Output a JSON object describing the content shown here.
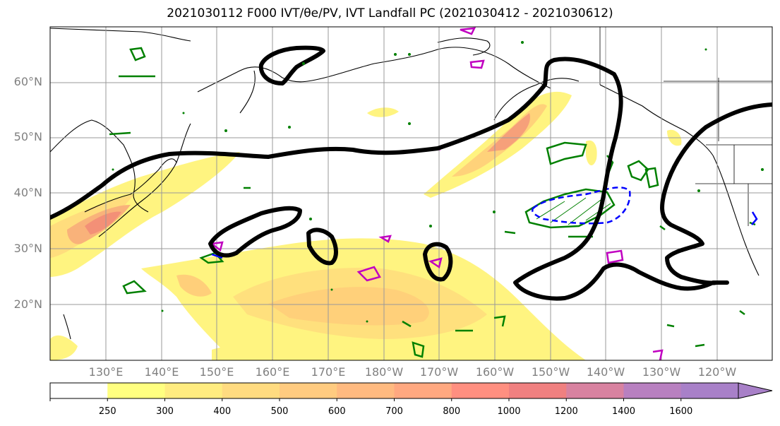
{
  "title": "2021030112 F000 IVT/θe/PV, IVT Landfall PC (2021030412 - 2021030612)",
  "lat_labels": [
    "60°N",
    "50°N",
    "40°N",
    "30°N",
    "20°N"
  ],
  "lon_labels": [
    "130°E",
    "140°E",
    "150°E",
    "160°E",
    "170°E",
    "180°W",
    "170°W",
    "160°W",
    "150°W",
    "140°W",
    "130°W",
    "120°W"
  ],
  "colorbar": {
    "ticks": [
      "250",
      "300",
      "400",
      "500",
      "600",
      "700",
      "800",
      "1000",
      "1200",
      "1400",
      "1600"
    ],
    "colors": [
      "#ffffff",
      "#ffff80",
      "#ffec80",
      "#ffdb80",
      "#ffcb80",
      "#ffba80",
      "#ffa880",
      "#ff8f80",
      "#f08080",
      "#d882a0",
      "#b880c0",
      "#a880c8"
    ]
  },
  "colors": {
    "ivt_fill_light": "#fff480",
    "ivt_fill_mid": "#ffd27a",
    "ivt_fill_high": "#f6a07a",
    "landfall_pc": "#000000",
    "theta_e": "#008000",
    "pv_negative": "#0000ff",
    "pv_positive": "#c000c0"
  }
}
